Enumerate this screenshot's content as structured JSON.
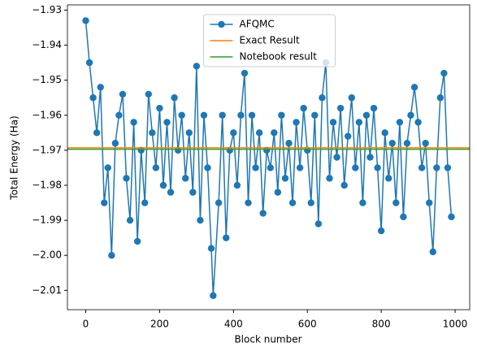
{
  "chart_data": {
    "type": "line",
    "x_label": "Block number",
    "y_label": "Total Energy (Ha)",
    "x": [
      0,
      10,
      20,
      30,
      40,
      50,
      60,
      70,
      80,
      90,
      100,
      110,
      120,
      130,
      140,
      150,
      160,
      170,
      180,
      190,
      200,
      210,
      220,
      230,
      240,
      250,
      260,
      270,
      280,
      290,
      300,
      310,
      320,
      330,
      340,
      345,
      360,
      370,
      380,
      390,
      400,
      410,
      420,
      430,
      440,
      450,
      460,
      470,
      480,
      490,
      500,
      510,
      520,
      530,
      540,
      550,
      560,
      570,
      580,
      590,
      600,
      610,
      620,
      630,
      640,
      650,
      660,
      670,
      680,
      690,
      700,
      710,
      720,
      730,
      740,
      750,
      760,
      770,
      780,
      790,
      800,
      810,
      820,
      830,
      840,
      850,
      860,
      870,
      880,
      890,
      900,
      910,
      920,
      930,
      940,
      950,
      960,
      970,
      980,
      990
    ],
    "series": [
      {
        "name": "AFQMC",
        "color": "#1f77b4",
        "marker": true,
        "values": [
          -1.933,
          -1.945,
          -1.955,
          -1.965,
          -1.952,
          -1.985,
          -1.975,
          -2.0,
          -1.968,
          -1.96,
          -1.954,
          -1.978,
          -1.99,
          -1.962,
          -1.996,
          -1.97,
          -1.985,
          -1.954,
          -1.965,
          -1.975,
          -1.958,
          -1.98,
          -1.962,
          -1.982,
          -1.955,
          -1.97,
          -1.96,
          -1.978,
          -1.965,
          -1.982,
          -1.946,
          -1.99,
          -1.96,
          -1.975,
          -1.998,
          -2.0115,
          -1.985,
          -1.96,
          -1.995,
          -1.97,
          -1.965,
          -1.98,
          -1.96,
          -1.948,
          -1.985,
          -1.96,
          -1.975,
          -1.965,
          -1.988,
          -1.97,
          -1.975,
          -1.965,
          -1.982,
          -1.96,
          -1.978,
          -1.968,
          -1.985,
          -1.962,
          -1.975,
          -1.958,
          -1.97,
          -1.985,
          -1.96,
          -1.991,
          -1.955,
          -1.945,
          -1.978,
          -1.962,
          -1.972,
          -1.958,
          -1.98,
          -1.966,
          -1.955,
          -1.975,
          -1.962,
          -1.985,
          -1.96,
          -1.972,
          -1.958,
          -1.975,
          -1.993,
          -1.965,
          -1.978,
          -1.968,
          -1.985,
          -1.962,
          -1.989,
          -1.968,
          -1.96,
          -1.952,
          -1.962,
          -1.975,
          -1.968,
          -1.985,
          -1.999,
          -1.975,
          -1.955,
          -1.948,
          -1.975,
          -1.989
        ]
      },
      {
        "name": "Exact Result",
        "color": "#ff7f0e",
        "hline": -1.9693
      },
      {
        "name": "Notebook result",
        "color": "#2ca02c",
        "hline": -1.9697
      }
    ],
    "xlim": [
      -49.5,
      1039.5
    ],
    "ylim": [
      -2.0155,
      -1.9285
    ],
    "xticks": [
      0,
      200,
      400,
      600,
      800,
      1000
    ],
    "yticks": [
      {
        "value": -1.93,
        "label": "−1.93"
      },
      {
        "value": -1.94,
        "label": "−1.94"
      },
      {
        "value": -1.95,
        "label": "−1.95"
      },
      {
        "value": -1.96,
        "label": "−1.96"
      },
      {
        "value": -1.97,
        "label": "−1.97"
      },
      {
        "value": -1.98,
        "label": "−1.98"
      },
      {
        "value": -1.99,
        "label": "−1.99"
      },
      {
        "value": -2.0,
        "label": "−2.00"
      },
      {
        "value": -2.01,
        "label": "−2.01"
      }
    ],
    "legend": "upper center"
  }
}
